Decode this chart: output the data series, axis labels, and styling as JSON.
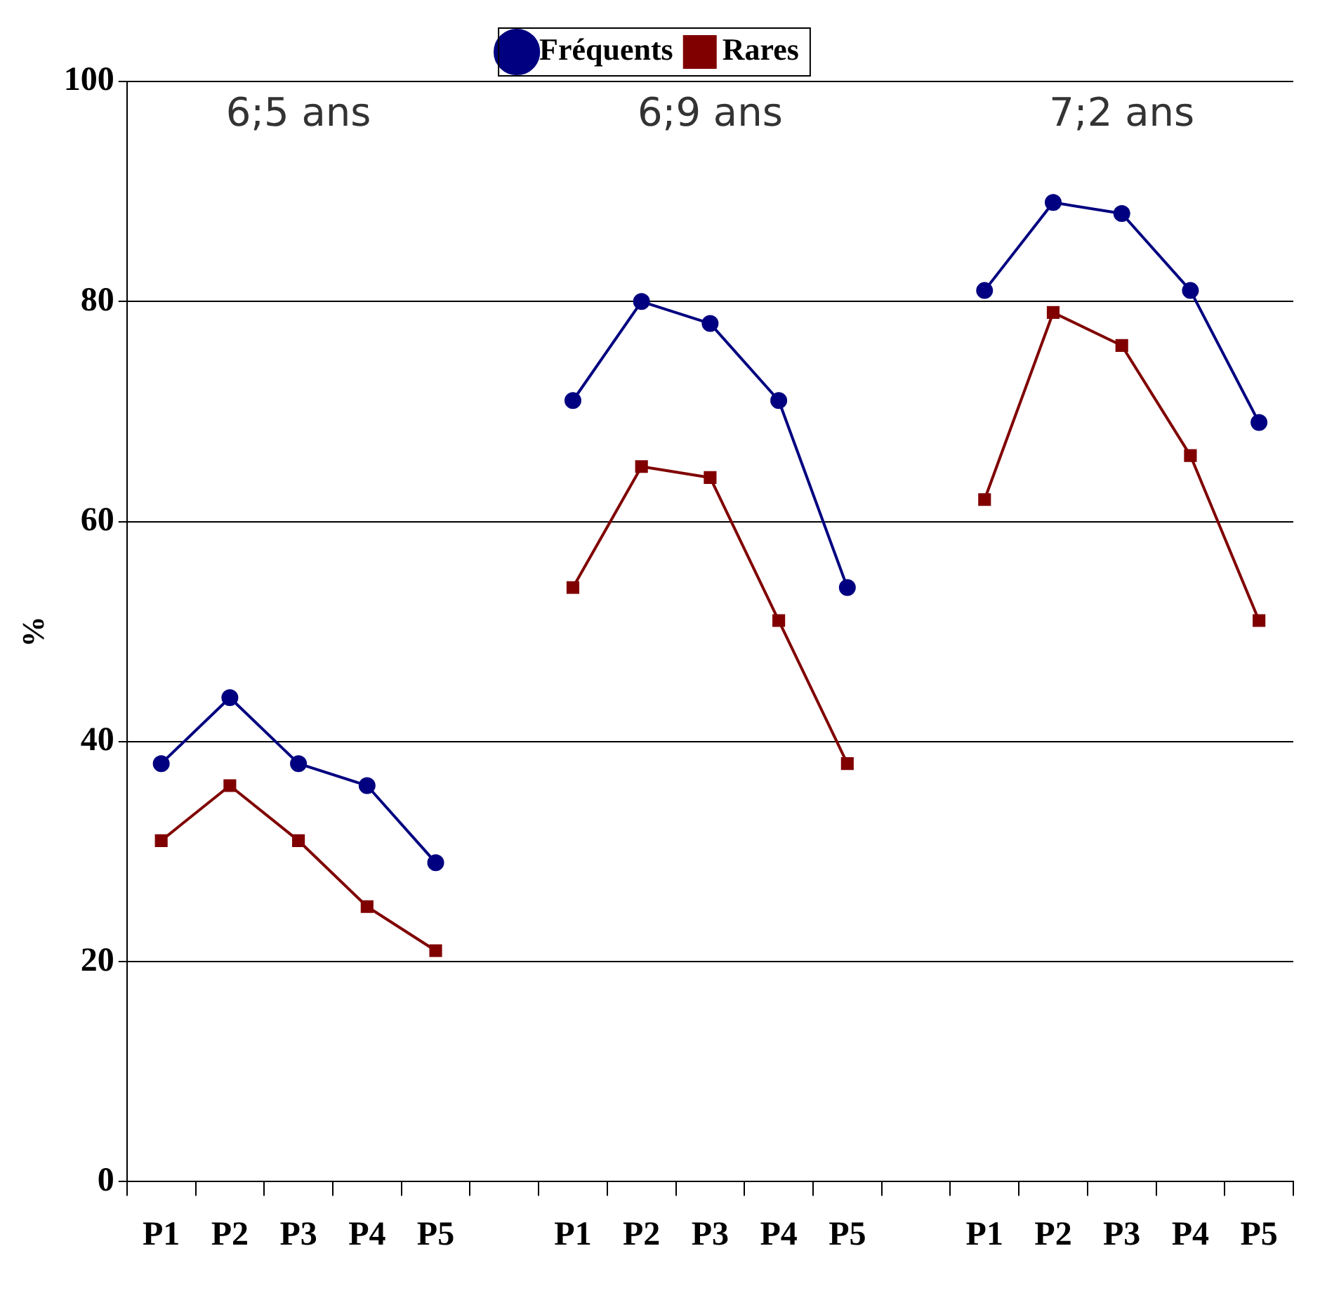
{
  "chart_data": {
    "type": "line",
    "categories": [
      "P1",
      "P2",
      "P3",
      "P4",
      "P5",
      null,
      "P1",
      "P2",
      "P3",
      "P4",
      "P5",
      null,
      "P1",
      "P2",
      "P3",
      "P4",
      "P5"
    ],
    "series": [
      {
        "name": "Fréquents",
        "color": "#000080",
        "marker": "circle",
        "values": [
          38,
          44,
          38,
          36,
          29,
          null,
          71,
          80,
          78,
          71,
          54,
          null,
          81,
          89,
          88,
          81,
          69
        ]
      },
      {
        "name": "Rares",
        "color": "#800000",
        "marker": "square",
        "values": [
          31,
          36,
          31,
          25,
          21,
          null,
          54,
          65,
          64,
          51,
          38,
          null,
          62,
          79,
          76,
          66,
          51
        ]
      }
    ],
    "ylabel": "%",
    "ylim": [
      0,
      100
    ],
    "yticks": [
      0,
      20,
      40,
      60,
      80,
      100
    ],
    "annotations": [
      "6;5 ans",
      "6;9 ans",
      "7;2 ans"
    ],
    "grid": "y",
    "legend": "top",
    "line_style": "solid"
  }
}
